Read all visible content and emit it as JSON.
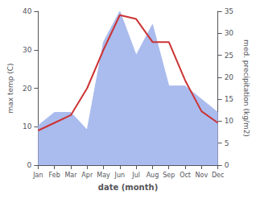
{
  "chart_data": {
    "type": "line",
    "xlabel": "date (month)",
    "ylabel": "max temp (C)",
    "y2label": "med. precipitation (kg/m2)",
    "categories": [
      "Jan",
      "Feb",
      "Mar",
      "Apr",
      "May",
      "Jun",
      "Jul",
      "Aug",
      "Sep",
      "Oct",
      "Nov",
      "Dec"
    ],
    "series": [
      {
        "type": "area",
        "axis": "y2",
        "color": "#aabbee",
        "values": [
          9,
          12,
          12,
          8,
          28,
          35,
          25,
          32,
          18,
          18,
          15,
          12
        ]
      },
      {
        "type": "line",
        "axis": "y",
        "color": "#cc3333",
        "values": [
          9,
          11,
          13,
          20,
          30,
          39,
          38,
          32,
          32,
          22,
          14,
          11
        ]
      }
    ],
    "ylim": [
      0,
      40
    ],
    "yticks": [
      0,
      10,
      20,
      30,
      40
    ],
    "y2lim": [
      0,
      35
    ],
    "y2ticks": [
      0,
      5,
      10,
      15,
      20,
      25,
      30,
      35
    ],
    "grid": false
  }
}
